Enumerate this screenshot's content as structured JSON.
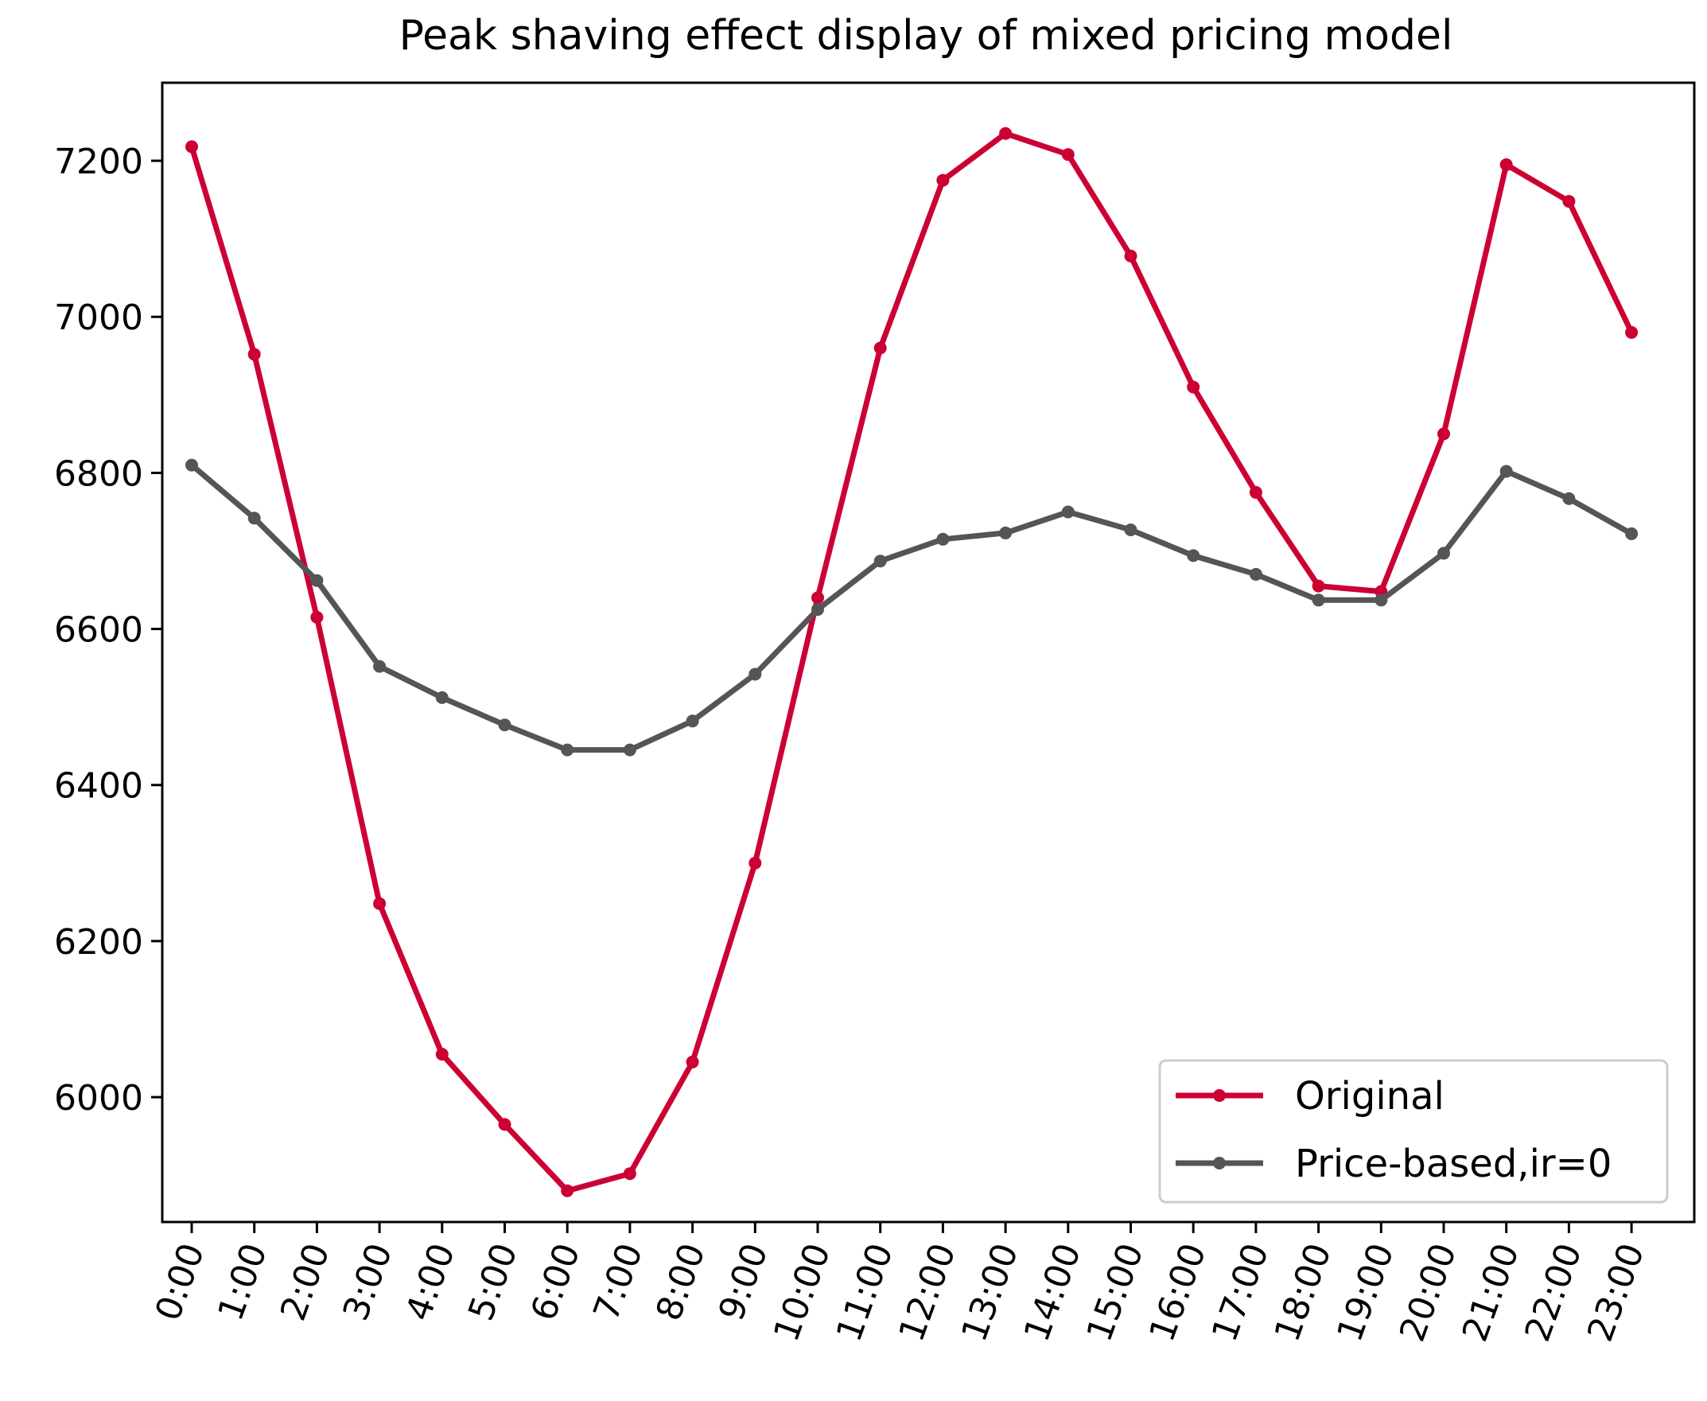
{
  "chart_data": {
    "type": "line",
    "title": "Peak shaving effect display of mixed pricing model",
    "xlabel": "",
    "ylabel": "",
    "categories": [
      "0:00",
      "1:00",
      "2:00",
      "3:00",
      "4:00",
      "5:00",
      "6:00",
      "7:00",
      "8:00",
      "9:00",
      "10:00",
      "11:00",
      "12:00",
      "13:00",
      "14:00",
      "15:00",
      "16:00",
      "17:00",
      "18:00",
      "19:00",
      "20:00",
      "21:00",
      "22:00",
      "23:00"
    ],
    "yticks": [
      6000,
      6200,
      6400,
      6600,
      6800,
      7000,
      7200
    ],
    "ylim": [
      5840,
      7300
    ],
    "grid": false,
    "legend_position": "lower-right",
    "series": [
      {
        "name": "Original",
        "color": "#cc0033",
        "marker": "dot",
        "values": [
          7218,
          6952,
          6615,
          6248,
          6055,
          5965,
          5880,
          5902,
          6045,
          6300,
          6640,
          6960,
          7175,
          7235,
          7208,
          7078,
          6910,
          6775,
          6655,
          6648,
          6850,
          7195,
          7148,
          6980
        ]
      },
      {
        "name": "Price-based,ir=0",
        "color": "#555555",
        "marker": "dot",
        "values": [
          6810,
          6742,
          6662,
          6552,
          6512,
          6477,
          6445,
          6445,
          6482,
          6542,
          6625,
          6687,
          6715,
          6723,
          6750,
          6727,
          6694,
          6670,
          6637,
          6637,
          6697,
          6802,
          6767,
          6722
        ]
      }
    ]
  }
}
